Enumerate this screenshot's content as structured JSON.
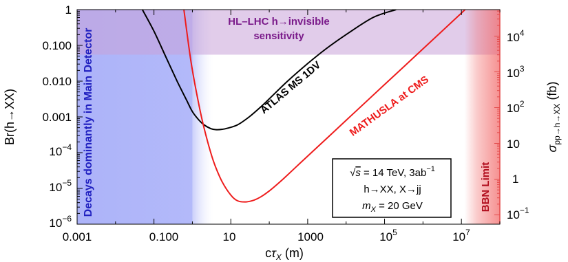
{
  "chart_data": {
    "type": "line",
    "title": "",
    "xlabel": "cτ_X (m)",
    "ylabel_left": "Br(h→XX)",
    "ylabel_right": "σ_pp→h→XX (fb)",
    "x_scale": "log",
    "y_scale": "log",
    "xlim": [
      0.001,
      100000000.0
    ],
    "ylim_left": [
      1e-06,
      1
    ],
    "ylim_right_fb": [
      0.055,
      55000
    ],
    "x_ticks": [
      "0.001",
      "0.100",
      "10",
      "1000",
      "10^5",
      "10^7"
    ],
    "y_ticks_left": [
      "1",
      "0.100",
      "0.010",
      "0.001",
      "10^-4",
      "10^-5",
      "10^-6"
    ],
    "y_ticks_right": [
      "10^4",
      "10^3",
      "10^2",
      "10",
      "1",
      "10^-1"
    ],
    "series": [
      {
        "name": "ATLAS MS 1DV",
        "color": "#000000",
        "x": [
          0.05,
          0.1,
          0.2,
          0.4,
          0.7,
          1.0,
          1.5,
          2.0,
          3.0,
          4.0,
          6.0,
          8.0,
          15,
          30,
          60,
          100,
          300,
          1000,
          3000,
          10000,
          50000,
          200000
        ],
        "y": [
          1.0,
          0.25,
          0.05,
          0.01,
          0.003,
          0.0014,
          0.0008,
          0.0006,
          0.00047,
          0.00044,
          0.00045,
          0.00048,
          0.0006,
          0.001,
          0.0019,
          0.0032,
          0.01,
          0.031,
          0.08,
          0.2,
          0.6,
          1.0
        ]
      },
      {
        "name": "MATHUSLA at CMS",
        "color": "#ee1c1c",
        "x": [
          0.6,
          0.8,
          1.0,
          1.5,
          2.0,
          3.0,
          4.0,
          6.0,
          10,
          15,
          25,
          40,
          60,
          100,
          200,
          500,
          1000,
          10000,
          100000,
          1000000,
          10000000,
          60000000
        ],
        "y": [
          1.0,
          0.1,
          0.02,
          0.002,
          0.0005,
          0.0001,
          4e-05,
          1.5e-05,
          6.5e-06,
          4.5e-06,
          4.2e-06,
          4.7e-06,
          5.8e-06,
          8.5e-06,
          1.6e-05,
          4e-05,
          8e-05,
          0.0008,
          0.008,
          0.08,
          0.8,
          5.0
        ]
      }
    ],
    "regions": [
      {
        "label": "Decays dominantly in Main Detector",
        "x_from": 0.001,
        "x_to": 1.0,
        "color": "#9ea6f8"
      },
      {
        "label": "HL-LHC h→invisible\nsensitivity",
        "y_from": 0.055,
        "y_to": 1,
        "color": "#c9a3d8"
      },
      {
        "label": "BBN Limit",
        "x_from": 12000000,
        "x_to": 100000000,
        "color": "#f26b6b"
      }
    ],
    "annotations": [
      {
        "text": "ATLAS MS 1DV",
        "color": "#000000"
      },
      {
        "text": "MATHUSLA at CMS",
        "color": "#ee1c1c"
      }
    ],
    "legend_box": {
      "lines": [
        "√s = 14 TeV, 3ab⁻¹",
        "h→XX, X→jj",
        "m_X = 20 GeV"
      ]
    }
  }
}
